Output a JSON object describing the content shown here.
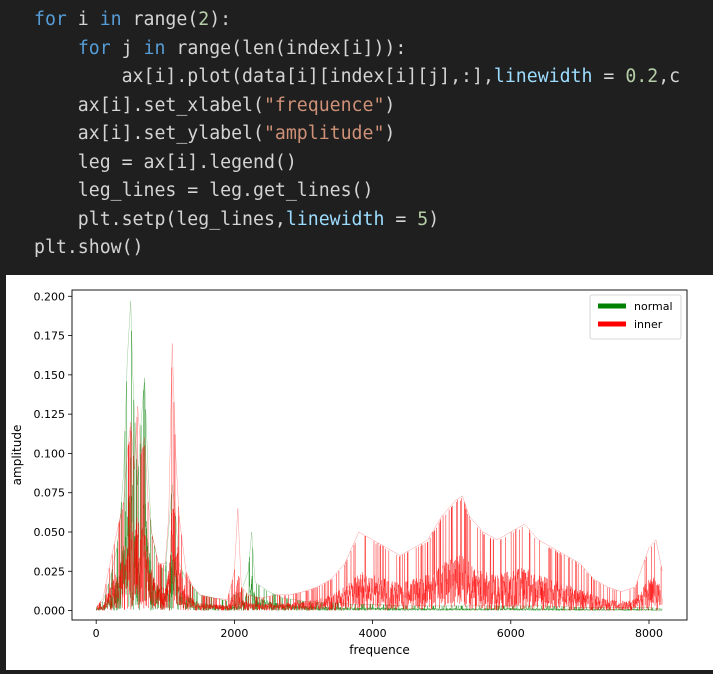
{
  "code": {
    "lines": [
      [
        {
          "t": "for",
          "c": "kw"
        },
        {
          "t": " i "
        },
        {
          "t": "in",
          "c": "kw"
        },
        {
          "t": " range("
        },
        {
          "t": "2",
          "c": "num"
        },
        {
          "t": "):"
        }
      ],
      [
        {
          "t": "    "
        },
        {
          "t": "for",
          "c": "kw"
        },
        {
          "t": " j "
        },
        {
          "t": "in",
          "c": "kw"
        },
        {
          "t": " range(len(index[i])):"
        }
      ],
      [
        {
          "t": "        ax[i].plot(data[i][index[i][j],:],"
        },
        {
          "t": "linewidth",
          "c": "param"
        },
        {
          "t": " = "
        },
        {
          "t": "0.2",
          "c": "num"
        },
        {
          "t": ",c"
        }
      ],
      [
        {
          "t": "    ax[i].set_xlabel("
        },
        {
          "t": "\"frequence\"",
          "c": "str"
        },
        {
          "t": ")"
        }
      ],
      [
        {
          "t": "    ax[i].set_ylabel("
        },
        {
          "t": "\"amplitude\"",
          "c": "str"
        },
        {
          "t": ")"
        }
      ],
      [
        {
          "t": "    leg = ax[i].legend()"
        }
      ],
      [
        {
          "t": "    leg_lines = leg.get_lines()"
        }
      ],
      [
        {
          "t": "    plt.setp(leg_lines,"
        },
        {
          "t": "linewidth",
          "c": "param"
        },
        {
          "t": " = "
        },
        {
          "t": "5",
          "c": "num"
        },
        {
          "t": ")"
        }
      ],
      [
        {
          "t": "plt.show()"
        }
      ]
    ]
  },
  "chart_data": {
    "type": "line",
    "xlabel": "frequence",
    "ylabel": "amplitude",
    "xlim": [
      -350,
      8550
    ],
    "ylim": [
      -0.006,
      0.204
    ],
    "x_ticks": [
      0,
      2000,
      4000,
      6000,
      8000
    ],
    "x_tick_labels": [
      "0",
      "2000",
      "4000",
      "6000",
      "8000"
    ],
    "y_ticks": [
      0.0,
      0.025,
      0.05,
      0.075,
      0.1,
      0.125,
      0.15,
      0.175,
      0.2
    ],
    "y_tick_labels": [
      "0.000",
      "0.025",
      "0.050",
      "0.075",
      "0.100",
      "0.125",
      "0.150",
      "0.175",
      "0.200"
    ],
    "legend_position": "top-right",
    "grid": false,
    "series": [
      {
        "name": "normal",
        "color": "#008000",
        "x": [
          0,
          100,
          200,
          300,
          350,
          400,
          450,
          500,
          530,
          560,
          600,
          650,
          700,
          750,
          800,
          900,
          1000,
          1100,
          1150,
          1200,
          1300,
          1400,
          1500,
          1700,
          1900,
          2000,
          2100,
          2200,
          2250,
          2300,
          2500,
          2700,
          3000,
          3300,
          3500,
          3700,
          4000,
          4500,
          5000,
          5500,
          6000,
          6500,
          7000,
          7500,
          8000,
          8192
        ],
        "y": [
          0.002,
          0.006,
          0.02,
          0.04,
          0.06,
          0.09,
          0.16,
          0.197,
          0.15,
          0.12,
          0.08,
          0.12,
          0.148,
          0.09,
          0.05,
          0.03,
          0.025,
          0.08,
          0.06,
          0.03,
          0.02,
          0.015,
          0.01,
          0.008,
          0.006,
          0.01,
          0.012,
          0.025,
          0.05,
          0.018,
          0.012,
          0.008,
          0.006,
          0.005,
          0.005,
          0.004,
          0.004,
          0.003,
          0.003,
          0.003,
          0.003,
          0.003,
          0.002,
          0.002,
          0.002,
          0.001
        ]
      },
      {
        "name": "inner",
        "color": "#ff0000",
        "x": [
          0,
          100,
          200,
          300,
          400,
          450,
          500,
          550,
          600,
          650,
          700,
          750,
          800,
          900,
          1000,
          1050,
          1100,
          1150,
          1200,
          1300,
          1400,
          1500,
          1700,
          1900,
          2000,
          2050,
          2100,
          2200,
          2400,
          2600,
          2800,
          3000,
          3200,
          3400,
          3600,
          3800,
          4000,
          4200,
          4400,
          4600,
          4800,
          5000,
          5200,
          5300,
          5400,
          5600,
          5800,
          6000,
          6200,
          6400,
          6600,
          6800,
          7000,
          7200,
          7400,
          7600,
          7800,
          8000,
          8100,
          8192
        ],
        "y": [
          0.002,
          0.008,
          0.03,
          0.05,
          0.07,
          0.1,
          0.12,
          0.09,
          0.13,
          0.1,
          0.11,
          0.07,
          0.05,
          0.03,
          0.03,
          0.06,
          0.17,
          0.1,
          0.06,
          0.025,
          0.015,
          0.01,
          0.008,
          0.007,
          0.025,
          0.065,
          0.015,
          0.01,
          0.008,
          0.01,
          0.01,
          0.012,
          0.015,
          0.02,
          0.03,
          0.05,
          0.045,
          0.04,
          0.035,
          0.04,
          0.045,
          0.06,
          0.07,
          0.073,
          0.06,
          0.05,
          0.045,
          0.05,
          0.055,
          0.045,
          0.04,
          0.035,
          0.03,
          0.02,
          0.015,
          0.012,
          0.015,
          0.04,
          0.045,
          0.025
        ]
      }
    ]
  }
}
